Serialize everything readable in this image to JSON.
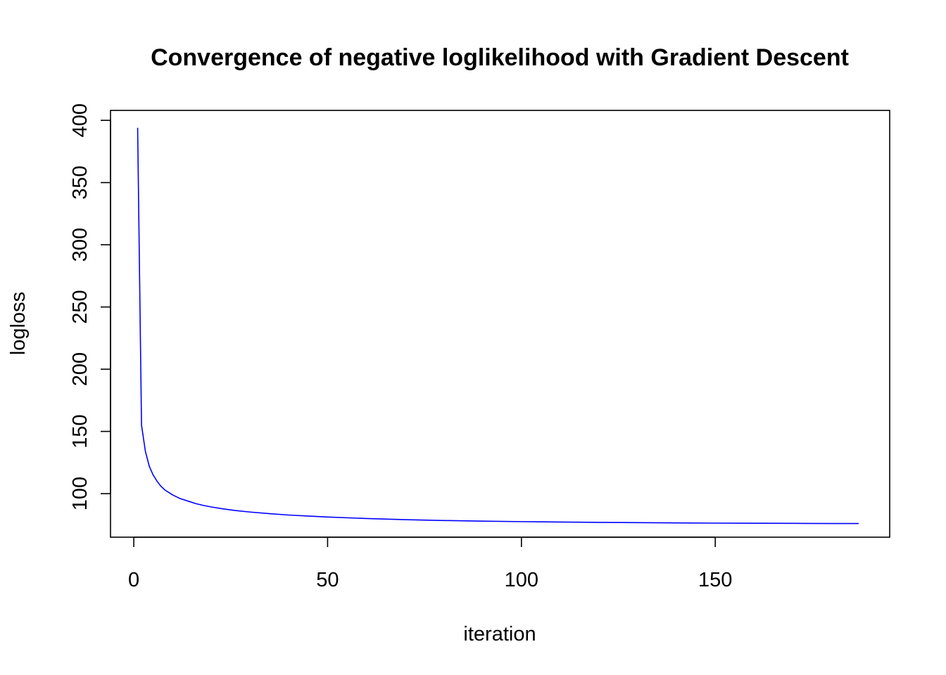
{
  "chart_data": {
    "type": "line",
    "title": "Convergence of negative loglikelihood with Gradient Descent",
    "xlabel": "iteration",
    "ylabel": "logloss",
    "xlim": [
      -6,
      195
    ],
    "ylim": [
      65,
      408
    ],
    "x_ticks": [
      0,
      50,
      100,
      150
    ],
    "y_ticks": [
      100,
      150,
      200,
      250,
      300,
      350,
      400
    ],
    "grid": false,
    "legend": "none",
    "series": [
      {
        "color": "#0000ff",
        "x": [
          1,
          2,
          3,
          4,
          5,
          6,
          7,
          8,
          9,
          10,
          12,
          14,
          16,
          18,
          20,
          23,
          26,
          30,
          35,
          40,
          45,
          50,
          60,
          70,
          80,
          90,
          100,
          110,
          120,
          130,
          140,
          150,
          160,
          170,
          180,
          187
        ],
        "values": [
          394,
          155,
          134,
          122,
          115,
          110,
          106,
          103,
          101,
          99,
          96,
          94,
          92,
          90.5,
          89.3,
          87.8,
          86.5,
          85.2,
          83.9,
          82.8,
          82.0,
          81.2,
          80.0,
          79.1,
          78.4,
          77.9,
          77.5,
          77.2,
          76.9,
          76.7,
          76.5,
          76.3,
          76.2,
          76.1,
          76.0,
          76.0
        ]
      }
    ]
  }
}
